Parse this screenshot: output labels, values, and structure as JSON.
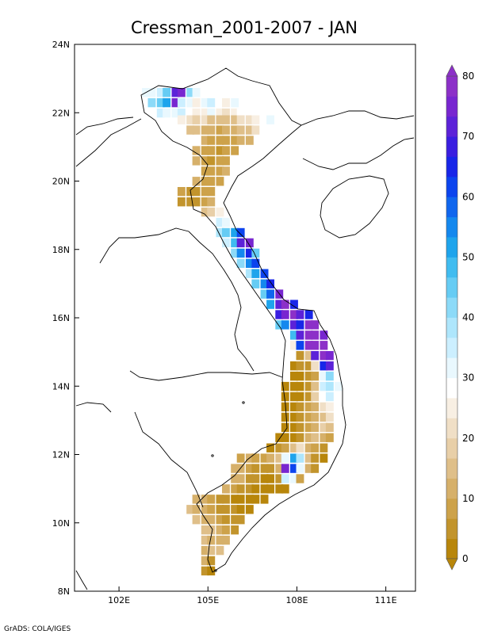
{
  "title": "Cressman_2001-2007 - JAN",
  "credit": "GrADS: COLA/IGES",
  "axes": {
    "lon_range": [
      100.5,
      112
    ],
    "lat_range": [
      8,
      24
    ],
    "x_ticks": [
      {
        "value": 102,
        "label": "102E"
      },
      {
        "value": 105,
        "label": "105E"
      },
      {
        "value": 108,
        "label": "108E"
      },
      {
        "value": 111,
        "label": "111E"
      }
    ],
    "y_ticks": [
      {
        "value": 24,
        "label": "24N"
      },
      {
        "value": 22,
        "label": "22N"
      },
      {
        "value": 20,
        "label": "20N"
      },
      {
        "value": 18,
        "label": "18N"
      },
      {
        "value": 16,
        "label": "16N"
      },
      {
        "value": 14,
        "label": "14N"
      },
      {
        "value": 12,
        "label": "12N"
      },
      {
        "value": 10,
        "label": "10N"
      },
      {
        "value": 8,
        "label": "8N"
      }
    ]
  },
  "colorbar": {
    "min": 0,
    "max": 80,
    "labels": [
      "0",
      "10",
      "20",
      "30",
      "40",
      "50",
      "60",
      "70",
      "80"
    ],
    "colors": [
      "#b8860b",
      "#c2942c",
      "#cda24a",
      "#d6b06a",
      "#dfbf89",
      "#e8cfa8",
      "#f0dfc6",
      "#f8efe3",
      "#ffffff",
      "#e9f8fe",
      "#ccefff",
      "#aee6fc",
      "#8cdaf8",
      "#66ccf4",
      "#40bcf0",
      "#1ea4ec",
      "#1488ee",
      "#1066ee",
      "#0c44ee",
      "#1826e8",
      "#3a1ee0",
      "#5c22d8",
      "#7826d0",
      "#8c30c8"
    ]
  },
  "chart_data": {
    "type": "heatmap",
    "title": "Cressman_2001-2007 - JAN",
    "units_range": [
      0,
      80
    ],
    "cell_size_deg": 0.25,
    "cells": [
      [
        102.9,
        22.6,
        32
      ],
      [
        103.1,
        22.6,
        30
      ],
      [
        103.4,
        22.6,
        36
      ],
      [
        103.6,
        22.6,
        44
      ],
      [
        103.9,
        22.6,
        70
      ],
      [
        104.1,
        22.6,
        74
      ],
      [
        104.4,
        22.6,
        40
      ],
      [
        104.6,
        22.6,
        32
      ],
      [
        103.1,
        22.3,
        40
      ],
      [
        103.4,
        22.3,
        44
      ],
      [
        103.6,
        22.3,
        52
      ],
      [
        103.9,
        22.3,
        76
      ],
      [
        104.1,
        22.3,
        36
      ],
      [
        104.4,
        22.3,
        30
      ],
      [
        104.6,
        22.3,
        26
      ],
      [
        104.9,
        22.3,
        30
      ],
      [
        105.1,
        22.3,
        34
      ],
      [
        105.4,
        22.3,
        28
      ],
      [
        105.6,
        22.3,
        24
      ],
      [
        105.9,
        22.3,
        30
      ],
      [
        103.4,
        22.0,
        36
      ],
      [
        103.6,
        22.0,
        30
      ],
      [
        103.9,
        22.0,
        32
      ],
      [
        104.1,
        22.0,
        36
      ],
      [
        104.4,
        22.0,
        28
      ],
      [
        104.6,
        22.0,
        24
      ],
      [
        104.9,
        22.0,
        26
      ],
      [
        105.1,
        22.0,
        30
      ],
      [
        105.4,
        22.0,
        24
      ],
      [
        105.6,
        22.0,
        22
      ],
      [
        105.9,
        22.0,
        26
      ],
      [
        106.1,
        22.0,
        28
      ],
      [
        104.1,
        21.8,
        26
      ],
      [
        104.4,
        21.8,
        22
      ],
      [
        104.6,
        21.8,
        18
      ],
      [
        104.9,
        21.8,
        20
      ],
      [
        105.1,
        21.8,
        16
      ],
      [
        105.4,
        21.8,
        14
      ],
      [
        105.6,
        21.8,
        14
      ],
      [
        105.9,
        21.8,
        16
      ],
      [
        106.1,
        21.8,
        20
      ],
      [
        106.4,
        21.8,
        22
      ],
      [
        106.6,
        21.8,
        24
      ],
      [
        106.9,
        21.8,
        28
      ],
      [
        107.1,
        21.8,
        30
      ],
      [
        104.4,
        21.5,
        16
      ],
      [
        104.6,
        21.5,
        14
      ],
      [
        104.9,
        21.5,
        12
      ],
      [
        105.1,
        21.5,
        10
      ],
      [
        105.4,
        21.5,
        9
      ],
      [
        105.6,
        21.5,
        10
      ],
      [
        105.9,
        21.5,
        12
      ],
      [
        106.1,
        21.5,
        14
      ],
      [
        106.4,
        21.5,
        16
      ],
      [
        106.6,
        21.5,
        20
      ],
      [
        104.9,
        21.2,
        10
      ],
      [
        105.1,
        21.2,
        9
      ],
      [
        105.4,
        21.2,
        8
      ],
      [
        105.6,
        21.2,
        7
      ],
      [
        105.9,
        21.2,
        8
      ],
      [
        106.1,
        21.2,
        10
      ],
      [
        106.4,
        21.2,
        12
      ],
      [
        104.6,
        20.9,
        12
      ],
      [
        104.9,
        20.9,
        9
      ],
      [
        105.1,
        20.9,
        7
      ],
      [
        105.4,
        20.9,
        6
      ],
      [
        105.6,
        20.9,
        7
      ],
      [
        105.9,
        20.9,
        8
      ],
      [
        104.6,
        20.6,
        10
      ],
      [
        104.9,
        20.6,
        8
      ],
      [
        105.1,
        20.6,
        6
      ],
      [
        105.4,
        20.6,
        7
      ],
      [
        105.6,
        20.6,
        8
      ],
      [
        104.9,
        20.3,
        9
      ],
      [
        105.1,
        20.3,
        7
      ],
      [
        105.4,
        20.3,
        8
      ],
      [
        105.6,
        20.3,
        10
      ],
      [
        104.6,
        20.0,
        11
      ],
      [
        104.9,
        20.0,
        8
      ],
      [
        105.1,
        20.0,
        7
      ],
      [
        105.4,
        20.0,
        9
      ],
      [
        104.1,
        19.7,
        8
      ],
      [
        104.4,
        19.7,
        5
      ],
      [
        104.6,
        19.7,
        6
      ],
      [
        104.9,
        19.7,
        7
      ],
      [
        105.1,
        19.7,
        8
      ],
      [
        104.1,
        19.4,
        6
      ],
      [
        104.4,
        19.4,
        4
      ],
      [
        104.6,
        19.4,
        5
      ],
      [
        104.9,
        19.4,
        9
      ],
      [
        105.1,
        19.4,
        12
      ],
      [
        104.9,
        19.1,
        14
      ],
      [
        105.1,
        19.1,
        18
      ],
      [
        105.4,
        19.1,
        24
      ],
      [
        105.1,
        18.8,
        28
      ],
      [
        105.4,
        18.8,
        34
      ],
      [
        105.6,
        18.8,
        30
      ],
      [
        105.4,
        18.5,
        38
      ],
      [
        105.6,
        18.5,
        44
      ],
      [
        105.9,
        18.5,
        52
      ],
      [
        106.1,
        18.5,
        60
      ],
      [
        105.6,
        18.2,
        36
      ],
      [
        105.9,
        18.2,
        48
      ],
      [
        106.1,
        18.2,
        72
      ],
      [
        106.4,
        18.2,
        76
      ],
      [
        105.9,
        17.9,
        40
      ],
      [
        106.1,
        17.9,
        54
      ],
      [
        106.4,
        17.9,
        64
      ],
      [
        106.6,
        17.9,
        46
      ],
      [
        106.1,
        17.6,
        42
      ],
      [
        106.4,
        17.6,
        56
      ],
      [
        106.6,
        17.6,
        62
      ],
      [
        106.4,
        17.3,
        38
      ],
      [
        106.6,
        17.3,
        50
      ],
      [
        106.9,
        17.3,
        60
      ],
      [
        106.6,
        17.0,
        44
      ],
      [
        106.9,
        17.0,
        54
      ],
      [
        107.1,
        17.0,
        66
      ],
      [
        106.9,
        16.7,
        46
      ],
      [
        107.1,
        16.7,
        58
      ],
      [
        107.4,
        16.7,
        76
      ],
      [
        107.1,
        16.4,
        52
      ],
      [
        107.4,
        16.4,
        72
      ],
      [
        107.6,
        16.4,
        78
      ],
      [
        107.9,
        16.4,
        64
      ],
      [
        107.4,
        16.1,
        68
      ],
      [
        107.6,
        16.1,
        74
      ],
      [
        107.9,
        16.1,
        80
      ],
      [
        108.1,
        16.1,
        70
      ],
      [
        108.4,
        16.1,
        66
      ],
      [
        107.4,
        15.8,
        44
      ],
      [
        107.6,
        15.8,
        56
      ],
      [
        107.9,
        15.8,
        72
      ],
      [
        108.1,
        15.8,
        64
      ],
      [
        108.4,
        15.8,
        80
      ],
      [
        108.6,
        15.8,
        78
      ],
      [
        107.6,
        15.5,
        28
      ],
      [
        107.9,
        15.5,
        48
      ],
      [
        108.1,
        15.5,
        70
      ],
      [
        108.4,
        15.5,
        78
      ],
      [
        108.6,
        15.5,
        80
      ],
      [
        108.9,
        15.5,
        76
      ],
      [
        107.9,
        15.2,
        26
      ],
      [
        108.1,
        15.2,
        60
      ],
      [
        108.4,
        15.2,
        78
      ],
      [
        108.6,
        15.2,
        80
      ],
      [
        108.9,
        15.2,
        78
      ],
      [
        108.1,
        14.9,
        4
      ],
      [
        108.4,
        14.9,
        16
      ],
      [
        108.6,
        14.9,
        70
      ],
      [
        108.9,
        14.9,
        78
      ],
      [
        109.1,
        14.9,
        76
      ],
      [
        107.9,
        14.6,
        3
      ],
      [
        108.1,
        14.6,
        4
      ],
      [
        108.4,
        14.6,
        6
      ],
      [
        108.6,
        14.6,
        20
      ],
      [
        108.9,
        14.6,
        64
      ],
      [
        109.1,
        14.6,
        72
      ],
      [
        107.9,
        14.3,
        2
      ],
      [
        108.1,
        14.3,
        3
      ],
      [
        108.4,
        14.3,
        5
      ],
      [
        108.6,
        14.3,
        8
      ],
      [
        108.9,
        14.3,
        30
      ],
      [
        109.1,
        14.3,
        42
      ],
      [
        107.6,
        14.0,
        1
      ],
      [
        107.9,
        14.0,
        2
      ],
      [
        108.1,
        14.0,
        3
      ],
      [
        108.4,
        14.0,
        4
      ],
      [
        108.6,
        14.0,
        14
      ],
      [
        108.9,
        14.0,
        34
      ],
      [
        109.1,
        14.0,
        38
      ],
      [
        109.4,
        14.0,
        30
      ],
      [
        107.6,
        13.7,
        1
      ],
      [
        107.9,
        13.7,
        2
      ],
      [
        108.1,
        13.7,
        3
      ],
      [
        108.4,
        13.7,
        6
      ],
      [
        108.6,
        13.7,
        18
      ],
      [
        108.9,
        13.7,
        28
      ],
      [
        109.1,
        13.7,
        34
      ],
      [
        107.6,
        13.4,
        2
      ],
      [
        107.9,
        13.4,
        3
      ],
      [
        108.1,
        13.4,
        5
      ],
      [
        108.4,
        13.4,
        8
      ],
      [
        108.6,
        13.4,
        12
      ],
      [
        108.9,
        13.4,
        20
      ],
      [
        109.1,
        13.4,
        26
      ],
      [
        107.6,
        13.1,
        2
      ],
      [
        107.9,
        13.1,
        3
      ],
      [
        108.1,
        13.1,
        4
      ],
      [
        108.4,
        13.1,
        7
      ],
      [
        108.6,
        13.1,
        10
      ],
      [
        108.9,
        13.1,
        16
      ],
      [
        109.1,
        13.1,
        22
      ],
      [
        107.6,
        12.8,
        2
      ],
      [
        107.9,
        12.8,
        3
      ],
      [
        108.1,
        12.8,
        5
      ],
      [
        108.4,
        12.8,
        8
      ],
      [
        108.6,
        12.8,
        12
      ],
      [
        108.9,
        12.8,
        18
      ],
      [
        109.1,
        12.8,
        14
      ],
      [
        107.4,
        12.5,
        1
      ],
      [
        107.6,
        12.5,
        2
      ],
      [
        107.9,
        12.5,
        3
      ],
      [
        108.1,
        12.5,
        6
      ],
      [
        108.4,
        12.5,
        10
      ],
      [
        108.6,
        12.5,
        14
      ],
      [
        108.9,
        12.5,
        10
      ],
      [
        109.1,
        12.5,
        8
      ],
      [
        107.1,
        12.2,
        2
      ],
      [
        107.4,
        12.2,
        4
      ],
      [
        107.6,
        12.2,
        8
      ],
      [
        107.9,
        12.2,
        14
      ],
      [
        108.1,
        12.2,
        22
      ],
      [
        108.4,
        12.2,
        12
      ],
      [
        108.6,
        12.2,
        8
      ],
      [
        108.9,
        12.2,
        5
      ],
      [
        106.1,
        11.9,
        8
      ],
      [
        106.4,
        11.9,
        10
      ],
      [
        106.6,
        11.9,
        9
      ],
      [
        106.9,
        11.9,
        8
      ],
      [
        107.1,
        11.9,
        10
      ],
      [
        107.4,
        11.9,
        14
      ],
      [
        107.6,
        11.9,
        30
      ],
      [
        107.9,
        11.9,
        50
      ],
      [
        108.1,
        11.9,
        38
      ],
      [
        108.4,
        11.9,
        16
      ],
      [
        108.6,
        11.9,
        6
      ],
      [
        108.9,
        11.9,
        3
      ],
      [
        105.9,
        11.6,
        10
      ],
      [
        106.1,
        11.6,
        12
      ],
      [
        106.4,
        11.6,
        8
      ],
      [
        106.6,
        11.6,
        6
      ],
      [
        106.9,
        11.6,
        4
      ],
      [
        107.1,
        11.6,
        6
      ],
      [
        107.4,
        11.6,
        12
      ],
      [
        107.6,
        11.6,
        76
      ],
      [
        107.9,
        11.6,
        60
      ],
      [
        108.1,
        11.6,
        30
      ],
      [
        108.4,
        11.6,
        10
      ],
      [
        108.6,
        11.6,
        4
      ],
      [
        105.9,
        11.3,
        12
      ],
      [
        106.1,
        11.3,
        10
      ],
      [
        106.4,
        11.3,
        6
      ],
      [
        106.6,
        11.3,
        4
      ],
      [
        106.9,
        11.3,
        2
      ],
      [
        107.1,
        11.3,
        2
      ],
      [
        107.4,
        11.3,
        4
      ],
      [
        107.6,
        11.3,
        36
      ],
      [
        107.9,
        11.3,
        30
      ],
      [
        108.1,
        11.3,
        8
      ],
      [
        105.6,
        11.0,
        10
      ],
      [
        105.9,
        11.0,
        8
      ],
      [
        106.1,
        11.0,
        6
      ],
      [
        106.4,
        11.0,
        4
      ],
      [
        106.6,
        11.0,
        2
      ],
      [
        106.9,
        11.0,
        1
      ],
      [
        107.1,
        11.0,
        1
      ],
      [
        107.4,
        11.0,
        2
      ],
      [
        107.6,
        11.0,
        3
      ],
      [
        104.6,
        10.7,
        12
      ],
      [
        104.9,
        10.7,
        10
      ],
      [
        105.1,
        10.7,
        8
      ],
      [
        105.4,
        10.7,
        6
      ],
      [
        105.6,
        10.7,
        4
      ],
      [
        105.9,
        10.7,
        3
      ],
      [
        106.1,
        10.7,
        2
      ],
      [
        106.4,
        10.7,
        1
      ],
      [
        106.6,
        10.7,
        1
      ],
      [
        106.9,
        10.7,
        2
      ],
      [
        104.4,
        10.4,
        14
      ],
      [
        104.6,
        10.4,
        12
      ],
      [
        104.9,
        10.4,
        10
      ],
      [
        105.1,
        10.4,
        8
      ],
      [
        105.4,
        10.4,
        6
      ],
      [
        105.6,
        10.4,
        5
      ],
      [
        105.9,
        10.4,
        4
      ],
      [
        106.1,
        10.4,
        3
      ],
      [
        106.4,
        10.4,
        2
      ],
      [
        104.6,
        10.1,
        14
      ],
      [
        104.9,
        10.1,
        12
      ],
      [
        105.1,
        10.1,
        10
      ],
      [
        105.4,
        10.1,
        8
      ],
      [
        105.6,
        10.1,
        6
      ],
      [
        105.9,
        10.1,
        5
      ],
      [
        106.1,
        10.1,
        4
      ],
      [
        104.9,
        9.8,
        16
      ],
      [
        105.1,
        9.8,
        14
      ],
      [
        105.4,
        9.8,
        11
      ],
      [
        105.6,
        9.8,
        8
      ],
      [
        105.9,
        9.8,
        6
      ],
      [
        104.9,
        9.5,
        14
      ],
      [
        105.1,
        9.5,
        12
      ],
      [
        105.4,
        9.5,
        10
      ],
      [
        105.6,
        9.5,
        12
      ],
      [
        104.9,
        9.2,
        12
      ],
      [
        105.1,
        9.2,
        14
      ],
      [
        105.4,
        9.2,
        16
      ],
      [
        104.9,
        8.9,
        10
      ],
      [
        105.1,
        8.9,
        6
      ],
      [
        104.9,
        8.6,
        4
      ],
      [
        105.1,
        8.6,
        3
      ]
    ]
  }
}
